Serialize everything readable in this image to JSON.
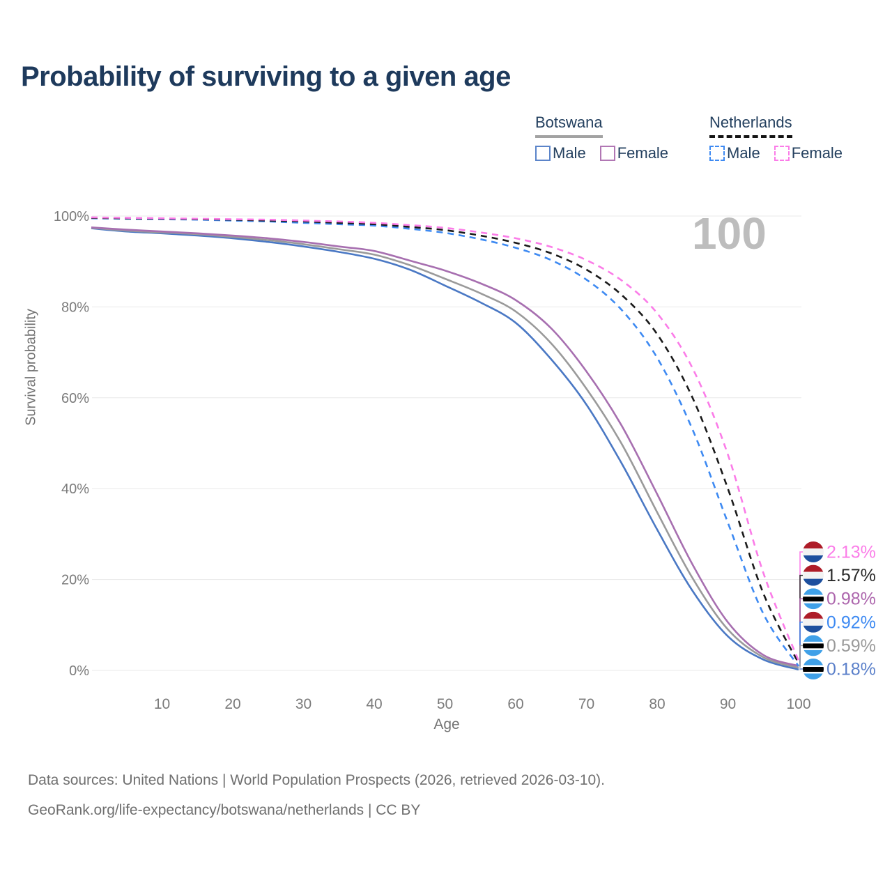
{
  "header": {
    "title": "Probability of surviving to a given age"
  },
  "legend": {
    "groups": [
      {
        "label": "Botswana",
        "line_style": "solid",
        "line_color": "#a2a2a2",
        "items": [
          {
            "label": "Male",
            "box_style": "solid",
            "box_color": "#5b84c9"
          },
          {
            "label": "Female",
            "box_style": "solid",
            "box_color": "#b177b4"
          }
        ]
      },
      {
        "label": "Netherlands",
        "line_style": "dashed",
        "line_color": "#141414",
        "items": [
          {
            "label": "Male",
            "box_style": "dashed",
            "box_color": "#3e8af2"
          },
          {
            "label": "Female",
            "box_style": "dashed",
            "box_color": "#fb7ce8"
          }
        ]
      }
    ]
  },
  "chart_data": {
    "type": "line",
    "title": "Probability of surviving to a given age",
    "xlabel": "Age",
    "ylabel": "Survival probability",
    "annotation": "100",
    "grid": true,
    "legend_position": "top-right",
    "xlim": [
      0,
      100
    ],
    "ylim": [
      0,
      100
    ],
    "x_ticks": [
      10,
      20,
      30,
      40,
      50,
      60,
      70,
      80,
      90,
      100
    ],
    "y_ticks": [
      {
        "label": "100%",
        "value": 100
      },
      {
        "label": "80%",
        "value": 80
      },
      {
        "label": "60%",
        "value": 60
      },
      {
        "label": "40%",
        "value": 40
      },
      {
        "label": "20%",
        "value": 20
      },
      {
        "label": "0%",
        "value": 0
      }
    ],
    "x": [
      0,
      5,
      10,
      15,
      20,
      25,
      30,
      35,
      40,
      45,
      50,
      55,
      60,
      65,
      70,
      75,
      80,
      85,
      90,
      95,
      100
    ],
    "series": [
      {
        "name": "Botswana Male",
        "country": "Botswana",
        "sex": "Male",
        "color": "#4a78c4",
        "dashed": false,
        "flag": "botswana",
        "end_label": "0.18%",
        "end_label_color": "#5b80ca",
        "values": [
          97.3,
          96.6,
          96.2,
          95.7,
          95.1,
          94.3,
          93.3,
          92.1,
          90.6,
          88.2,
          84.7,
          81.0,
          76.5,
          68.5,
          58.5,
          45.5,
          31.0,
          17.5,
          7.5,
          2.4,
          0.18
        ]
      },
      {
        "name": "Botswana",
        "country": "Botswana",
        "sex": "Both",
        "color": "#9a9a9a",
        "dashed": false,
        "flag": "botswana",
        "end_label": "0.59%",
        "end_label_color": "#9a9a9a",
        "values": [
          97.4,
          96.8,
          96.4,
          96.0,
          95.4,
          94.7,
          93.8,
          92.7,
          91.5,
          89.2,
          86.2,
          83.0,
          79.0,
          72.0,
          62.0,
          49.8,
          34.8,
          20.3,
          9.0,
          2.9,
          0.59
        ]
      },
      {
        "name": "Botswana Female",
        "country": "Botswana",
        "sex": "Female",
        "color": "#a76fb0",
        "dashed": false,
        "flag": "botswana",
        "end_label": "0.98%",
        "end_label_color": "#ad66ad",
        "values": [
          97.5,
          97.0,
          96.6,
          96.2,
          95.7,
          95.1,
          94.3,
          93.3,
          92.3,
          90.2,
          88.0,
          85.2,
          81.5,
          75.3,
          65.8,
          53.8,
          38.8,
          23.3,
          10.6,
          3.4,
          0.98
        ]
      },
      {
        "name": "Netherlands Male",
        "country": "Netherlands",
        "sex": "Male",
        "color": "#3e8af2",
        "dashed": true,
        "flag": "netherlands",
        "end_label": "0.92%",
        "end_label_color": "#3e8af2",
        "values": [
          99.5,
          99.4,
          99.3,
          99.2,
          99.0,
          98.8,
          98.5,
          98.2,
          97.9,
          97.2,
          96.3,
          94.9,
          93.0,
          90.3,
          86.0,
          79.3,
          68.8,
          53.0,
          32.5,
          12.5,
          0.92
        ]
      },
      {
        "name": "Netherlands",
        "country": "Netherlands",
        "sex": "Both",
        "color": "#1a1a1a",
        "dashed": true,
        "flag": "netherlands",
        "end_label": "1.57%",
        "end_label_color": "#282828",
        "values": [
          99.6,
          99.5,
          99.4,
          99.3,
          99.2,
          99.0,
          98.8,
          98.5,
          98.2,
          97.6,
          96.9,
          95.7,
          94.1,
          91.8,
          88.2,
          82.6,
          74.0,
          60.0,
          40.0,
          17.0,
          1.57
        ]
      },
      {
        "name": "Netherlands Female",
        "country": "Netherlands",
        "sex": "Female",
        "color": "#fb7ce8",
        "dashed": true,
        "flag": "netherlands",
        "end_label": "2.13%",
        "end_label_color": "#fb7ce8",
        "values": [
          99.7,
          99.6,
          99.5,
          99.4,
          99.3,
          99.2,
          99.0,
          98.8,
          98.5,
          98.0,
          97.4,
          96.4,
          95.1,
          93.2,
          90.3,
          85.8,
          78.6,
          66.5,
          47.5,
          21.5,
          2.13
        ]
      }
    ],
    "flag_colors": {
      "netherlands": {
        "red": "#ae1c28",
        "white": "#f2f2f2",
        "blue": "#1d4f9e"
      },
      "botswana": {
        "azure": "#3fa0e8",
        "white": "#ffffff",
        "black": "#000000"
      }
    },
    "style": {
      "gridline_color": "#e8e8e8",
      "tick_color": "#7b7b7b",
      "annotation_color": "#bdbdbd"
    }
  },
  "footer": {
    "line1": "Data sources: United Nations | World Population Prospects (2026, retrieved 2026-03-10).",
    "line2": "GeoRank.org/life-expectancy/botswana/netherlands | CC BY"
  }
}
